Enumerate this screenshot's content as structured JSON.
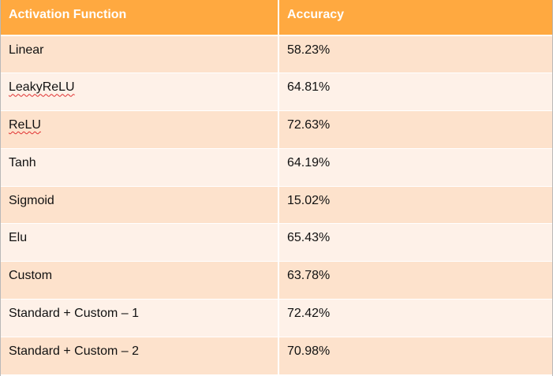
{
  "table": {
    "headers": [
      "Activation Function",
      "Accuracy"
    ],
    "rows": [
      {
        "name": "Linear",
        "accuracy": "58.23%",
        "spellcheck": false
      },
      {
        "name": "LeakyReLU",
        "accuracy": "64.81%",
        "spellcheck": true
      },
      {
        "name": "ReLU",
        "accuracy": "72.63%",
        "spellcheck": true
      },
      {
        "name": "Tanh",
        "accuracy": "64.19%",
        "spellcheck": false
      },
      {
        "name": "Sigmoid",
        "accuracy": "15.02%",
        "spellcheck": false
      },
      {
        "name": "Elu",
        "accuracy": "65.43%",
        "spellcheck": false
      },
      {
        "name": "Custom",
        "accuracy": "63.78%",
        "spellcheck": false
      },
      {
        "name": "Standard + Custom – 1",
        "accuracy": "72.42%",
        "spellcheck": false
      },
      {
        "name": "Standard + Custom – 2",
        "accuracy": "70.98%",
        "spellcheck": false
      }
    ]
  },
  "colors": {
    "header_bg": "#ffa940",
    "row_odd_bg": "#fde2cc",
    "row_even_bg": "#fef1e8",
    "spellcheck_underline": "#e03030"
  }
}
